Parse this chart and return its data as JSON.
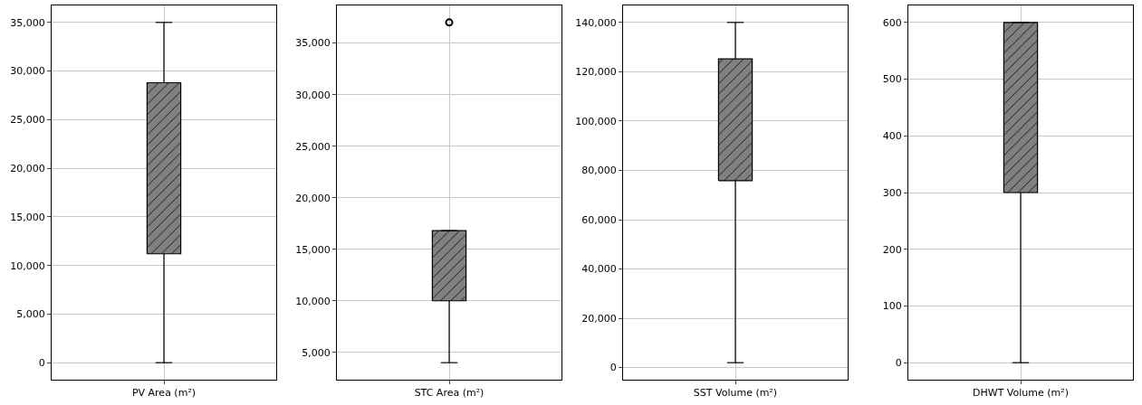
{
  "chart_data": [
    {
      "type": "box",
      "categories": [
        "PV Area (m²)"
      ],
      "color": "#808080",
      "grid": true,
      "ylim": [
        -1750,
        36750
      ],
      "yticks": [
        {
          "value": 0,
          "label": "0"
        },
        {
          "value": 5000,
          "label": "5,000"
        },
        {
          "value": 10000,
          "label": "10,000"
        },
        {
          "value": 15000,
          "label": "15,000"
        },
        {
          "value": 20000,
          "label": "20,000"
        },
        {
          "value": 25000,
          "label": "25,000"
        },
        {
          "value": 30000,
          "label": "30,000"
        },
        {
          "value": 35000,
          "label": "35,000"
        }
      ],
      "boxes": [
        {
          "low": 0,
          "q1": 11200,
          "q3": 28800,
          "high": 35000
        }
      ]
    },
    {
      "type": "box",
      "categories": [
        "STC Area (m²)"
      ],
      "color": "#808080",
      "grid": true,
      "ylim": [
        2350,
        38650
      ],
      "yticks": [
        {
          "value": 5000,
          "label": "5,000"
        },
        {
          "value": 10000,
          "label": "10,000"
        },
        {
          "value": 15000,
          "label": "15,000"
        },
        {
          "value": 20000,
          "label": "20,000"
        },
        {
          "value": 25000,
          "label": "25,000"
        },
        {
          "value": 30000,
          "label": "30,000"
        },
        {
          "value": 35000,
          "label": "35,000"
        }
      ],
      "boxes": [
        {
          "low": 4000,
          "q1": 10000,
          "q3": 16800,
          "high": 16800,
          "outliers": [
            37000
          ]
        }
      ]
    },
    {
      "type": "box",
      "categories": [
        "SST Volume (m²)"
      ],
      "color": "#808080",
      "grid": true,
      "ylim": [
        -4900,
        146900
      ],
      "yticks": [
        {
          "value": 0,
          "label": "0"
        },
        {
          "value": 20000,
          "label": "20,000"
        },
        {
          "value": 40000,
          "label": "40,000"
        },
        {
          "value": 60000,
          "label": "60,000"
        },
        {
          "value": 80000,
          "label": "80,000"
        },
        {
          "value": 100000,
          "label": "100,000"
        },
        {
          "value": 120000,
          "label": "120,000"
        },
        {
          "value": 140000,
          "label": "140,000"
        }
      ],
      "boxes": [
        {
          "low": 2000,
          "q1": 75800,
          "q3": 125200,
          "high": 140000
        }
      ]
    },
    {
      "type": "box",
      "categories": [
        "DHWT Volume (m²)"
      ],
      "color": "#808080",
      "grid": true,
      "ylim": [
        -30,
        630
      ],
      "yticks": [
        0,
        100,
        200,
        300,
        400,
        500,
        600
      ],
      "boxes": [
        {
          "low": 0,
          "q1": 300,
          "q3": 600,
          "high": 600
        }
      ]
    }
  ]
}
